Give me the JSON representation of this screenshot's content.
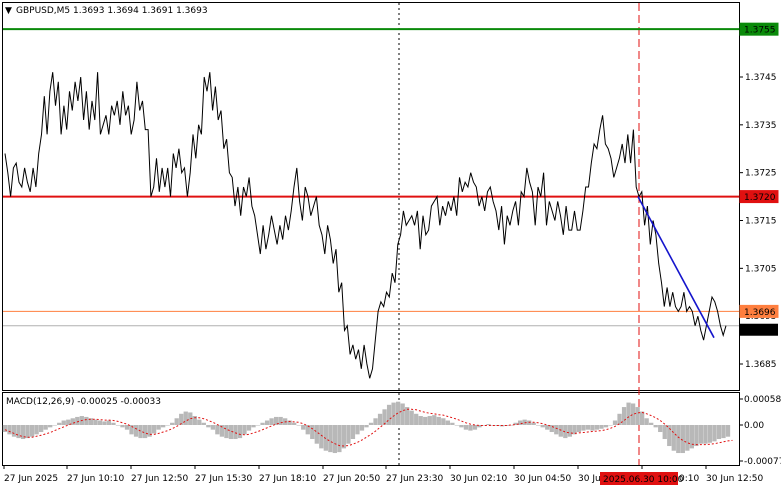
{
  "header": {
    "menu_arrow": "▼",
    "symbol_line": "GBPUSD,M5  1.3693 1.3694 1.3691 1.3693"
  },
  "macd_header": "MACD(12,26,9) -0.00025 -0.00033",
  "colors": {
    "price": "#000000",
    "level_green": "#0a8a0a",
    "level_red": "#e01010",
    "level_orange": "#ff7f3f",
    "current_gray": "#b0b0b0",
    "trend_blue": "#1515cc",
    "macd_hist": "#b8b8b8",
    "macd_signal": "#e01010",
    "badge_red": "#e01010"
  },
  "chart_data": [
    {
      "type": "line",
      "name": "GBPUSD M5 price",
      "ylim": [
        1.368,
        1.3758
      ],
      "y_ticks": [
        "1.3745",
        "1.3735",
        "1.3725",
        "1.3715",
        "1.3705",
        "1.3695",
        "1.3685"
      ],
      "x_ticks": [
        "27 Jun 2025",
        "27 Jun 10:10",
        "27 Jun 12:50",
        "27 Jun 15:30",
        "27 Jun 18:10",
        "27 Jun 20:50",
        "27 Jun 23:30",
        "30 Jun 02:10",
        "30 Jun 04:50",
        "30 Jun 07:30",
        "30 Jun 10:10",
        "30 Jun 12:50"
      ],
      "x_marker_label": "2025.06.30 10:00",
      "levels": [
        {
          "label": "1.3755",
          "value": 1.3755,
          "color": "green"
        },
        {
          "label": "1.3720",
          "value": 1.372,
          "color": "red"
        },
        {
          "label": "1.3696",
          "value": 1.3696,
          "color": "orange"
        },
        {
          "label": "1.3693",
          "value": 1.3693,
          "color": "current"
        }
      ],
      "vertical_markers": [
        {
          "style": "dotted",
          "at": "27 Jun 23:30"
        },
        {
          "style": "dashed-red",
          "at": "2025.06.30 10:00"
        }
      ],
      "trendline": {
        "from": 1.372,
        "to": 1.36905
      },
      "close_values": [
        1.3729,
        1.3725,
        1.372,
        1.3726,
        1.3727,
        1.3723,
        1.3722,
        1.3726,
        1.3723,
        1.3721,
        1.3726,
        1.3722,
        1.3729,
        1.3733,
        1.3741,
        1.3733,
        1.3742,
        1.3746,
        1.3739,
        1.3744,
        1.3733,
        1.3739,
        1.3734,
        1.3742,
        1.3738,
        1.3744,
        1.374,
        1.3745,
        1.3736,
        1.3742,
        1.3734,
        1.374,
        1.3736,
        1.3746,
        1.3733,
        1.3735,
        1.3737,
        1.3733,
        1.3739,
        1.3737,
        1.374,
        1.3735,
        1.3742,
        1.3737,
        1.3739,
        1.3733,
        1.3736,
        1.3744,
        1.3738,
        1.374,
        1.3734,
        1.3734,
        1.372,
        1.3722,
        1.3728,
        1.3721,
        1.3726,
        1.3722,
        1.3726,
        1.372,
        1.3729,
        1.3726,
        1.373,
        1.3725,
        1.3726,
        1.372,
        1.3725,
        1.3733,
        1.3728,
        1.3735,
        1.3733,
        1.3745,
        1.3742,
        1.3746,
        1.3738,
        1.3743,
        1.3736,
        1.3738,
        1.373,
        1.3732,
        1.3725,
        1.3724,
        1.3718,
        1.3722,
        1.3716,
        1.3722,
        1.372,
        1.3724,
        1.3718,
        1.3716,
        1.3712,
        1.3708,
        1.3714,
        1.3709,
        1.3712,
        1.3716,
        1.3713,
        1.371,
        1.3714,
        1.3711,
        1.3716,
        1.3713,
        1.3717,
        1.3722,
        1.3726,
        1.3719,
        1.3715,
        1.3722,
        1.372,
        1.3716,
        1.3718,
        1.372,
        1.3714,
        1.3712,
        1.3708,
        1.3714,
        1.3711,
        1.3706,
        1.3709,
        1.37,
        1.3702,
        1.3692,
        1.3693,
        1.3687,
        1.3689,
        1.3686,
        1.3688,
        1.3684,
        1.3689,
        1.3685,
        1.3682,
        1.3684,
        1.369,
        1.3696,
        1.3698,
        1.3697,
        1.37,
        1.3699,
        1.3704,
        1.3702,
        1.371,
        1.3712,
        1.3717,
        1.3714,
        1.3715,
        1.3716,
        1.3714,
        1.3717,
        1.3709,
        1.3716,
        1.3712,
        1.3713,
        1.3718,
        1.3719,
        1.372,
        1.3714,
        1.3718,
        1.3716,
        1.3719,
        1.3717,
        1.372,
        1.3716,
        1.3724,
        1.3721,
        1.3723,
        1.3722,
        1.3725,
        1.3723,
        1.3722,
        1.3718,
        1.372,
        1.3717,
        1.3721,
        1.3722,
        1.3719,
        1.3717,
        1.3713,
        1.3718,
        1.371,
        1.3716,
        1.3714,
        1.3717,
        1.3719,
        1.3714,
        1.3721,
        1.372,
        1.3726,
        1.3723,
        1.3721,
        1.3714,
        1.3722,
        1.372,
        1.3725,
        1.3714,
        1.3719,
        1.3717,
        1.3715,
        1.3719,
        1.3716,
        1.3712,
        1.3718,
        1.3713,
        1.3713,
        1.3717,
        1.3713,
        1.3713,
        1.3717,
        1.3722,
        1.3722,
        1.3727,
        1.3731,
        1.373,
        1.3734,
        1.3737,
        1.3731,
        1.373,
        1.3728,
        1.3724,
        1.3726,
        1.3728,
        1.3731,
        1.3727,
        1.3733,
        1.3727,
        1.3734,
        1.3722,
        1.372,
        1.3721,
        1.3714,
        1.3718,
        1.371,
        1.3715,
        1.3712,
        1.3706,
        1.3702,
        1.3697,
        1.3701,
        1.3697,
        1.37,
        1.3697,
        1.3696,
        1.3697,
        1.37,
        1.3696,
        1.3697,
        1.3696,
        1.3693,
        1.3695,
        1.3692,
        1.369,
        1.3693,
        1.3696,
        1.3699,
        1.3698,
        1.3696,
        1.3693,
        1.3691,
        1.3693
      ]
    },
    {
      "type": "bar",
      "name": "MACD(12,26,9)",
      "ylim": [
        -0.00077,
        0.00058
      ],
      "y_ticks": [
        "0.00058",
        "0.00",
        "-0.00077"
      ],
      "current": {
        "macd": -0.00025,
        "signal": -0.00033
      },
      "histogram": [
        -0.00015,
        -0.0002,
        -0.00025,
        -0.00028,
        -0.0003,
        -0.00028,
        -0.00025,
        -0.0002,
        -0.00015,
        -0.0001,
        -5e-05,
        0.0,
        5e-05,
        0.0001,
        0.00012,
        0.00015,
        0.00018,
        0.0002,
        0.00018,
        0.00015,
        0.00012,
        0.0001,
        8e-05,
        0.0001,
        5e-05,
        0.0,
        -5e-05,
        -0.0001,
        -0.0002,
        -0.00025,
        -0.00028,
        -0.00028,
        -0.00025,
        -0.00018,
        -0.0001,
        -5e-05,
        0.0,
        5e-05,
        0.00015,
        0.00025,
        0.0003,
        0.00028,
        0.0002,
        0.00012,
        5e-05,
        -5e-05,
        -0.0001,
        -0.0002,
        -0.00025,
        -0.00028,
        -0.0003,
        -0.0003,
        -0.00028,
        -0.0002,
        -0.00012,
        -5e-05,
        0.0,
        5e-05,
        0.0001,
        0.00015,
        0.00018,
        0.00018,
        0.00015,
        0.0001,
        5e-05,
        0.0,
        -0.0001,
        -0.0002,
        -0.0003,
        -0.0004,
        -0.0005,
        -0.00055,
        -0.00058,
        -0.0006,
        -0.00058,
        -0.0005,
        -0.0004,
        -0.0003,
        -0.0002,
        -0.00012,
        -5e-05,
        5e-05,
        0.00015,
        0.00025,
        0.00035,
        0.00045,
        0.0005,
        0.00052,
        0.00048,
        0.0004,
        0.00032,
        0.00025,
        0.0002,
        0.00018,
        0.0002,
        0.00022,
        0.00018,
        0.00015,
        0.0001,
        5e-05,
        0.0,
        -5e-05,
        -0.0001,
        -0.00012,
        -0.0001,
        -5e-05,
        0.0,
        2e-05,
        0.0,
        -2e-05,
        -3e-05,
        -2e-05,
        0.0,
        5e-05,
        0.0001,
        0.00012,
        0.0001,
        5e-05,
        0.0,
        -5e-05,
        -0.0001,
        -0.00015,
        -0.0002,
        -0.00025,
        -0.00028,
        -0.00025,
        -0.0002,
        -0.00015,
        -0.00012,
        -0.0001,
        -0.00012,
        -0.0001,
        -8e-05,
        -5e-05,
        0.0,
        0.0001,
        0.00025,
        0.0004,
        0.0005,
        0.00048,
        0.0004,
        0.0003,
        0.00015,
        5e-05,
        -5e-05,
        -0.00015,
        -0.0003,
        -0.00045,
        -0.00055,
        -0.0006,
        -0.0006,
        -0.00055,
        -0.0005,
        -0.00045,
        -0.0004,
        -0.0004,
        -0.00038,
        -0.00035,
        -0.0003,
        -0.00028,
        -0.00025
      ],
      "signal": [
        -0.0001,
        -0.00014,
        -0.00018,
        -0.00022,
        -0.00025,
        -0.00026,
        -0.00026,
        -0.00024,
        -0.00022,
        -0.00019,
        -0.00016,
        -0.00012,
        -8e-05,
        -4e-05,
        0.0,
        4e-05,
        7e-05,
        0.0001,
        0.00012,
        0.00013,
        0.00013,
        0.00012,
        0.00011,
        0.00011,
        0.0001,
        8e-05,
        5e-05,
        2e-05,
        -3e-05,
        -8e-05,
        -0.00013,
        -0.00017,
        -0.0002,
        -0.0002,
        -0.00018,
        -0.00015,
        -0.00012,
        -8e-05,
        -3e-05,
        3e-05,
        9e-05,
        0.00014,
        0.00016,
        0.00016,
        0.00014,
        0.0001,
        6e-05,
        1e-05,
        -4e-05,
        -9e-05,
        -0.00013,
        -0.00017,
        -0.0002,
        -0.00021,
        -0.0002,
        -0.00017,
        -0.00014,
        -0.0001,
        -6e-05,
        -2e-05,
        2e-05,
        5e-05,
        7e-05,
        8e-05,
        7e-05,
        6e-05,
        3e-05,
        -2e-05,
        -8e-05,
        -0.00015,
        -0.00022,
        -0.00029,
        -0.00035,
        -0.0004,
        -0.00044,
        -0.00045,
        -0.00044,
        -0.00041,
        -0.00037,
        -0.00032,
        -0.00026,
        -0.0002,
        -0.00013,
        -5e-05,
        3e-05,
        0.00012,
        0.0002,
        0.00027,
        0.00032,
        0.00035,
        0.00035,
        0.00034,
        0.00031,
        0.00028,
        0.00026,
        0.00025,
        0.00023,
        0.00022,
        0.00019,
        0.00016,
        0.00013,
        9e-05,
        5e-05,
        2e-05,
        0.0,
        -1e-05,
        -1e-05,
        -1e-05,
        -1e-05,
        -1e-05,
        -1e-05,
        -1e-05,
        0.0,
        1e-05,
        3e-05,
        5e-05,
        6e-05,
        6e-05,
        5e-05,
        3e-05,
        0.0,
        -3e-05,
        -7e-05,
        -0.00011,
        -0.00015,
        -0.00017,
        -0.00018,
        -0.00017,
        -0.00016,
        -0.00015,
        -0.00014,
        -0.00013,
        -0.00012,
        -0.0001,
        -7e-05,
        -3e-05,
        3e-05,
        0.0001,
        0.00018,
        0.00024,
        0.00027,
        0.00028,
        0.00025,
        0.00021,
        0.00016,
        0.0001,
        2e-05,
        -7e-05,
        -0.00017,
        -0.00026,
        -0.00033,
        -0.00038,
        -0.00041,
        -0.00042,
        -0.00042,
        -0.00042,
        -0.00041,
        -0.0004,
        -0.00038,
        -0.00036,
        -0.00034,
        -0.00033
      ]
    }
  ]
}
